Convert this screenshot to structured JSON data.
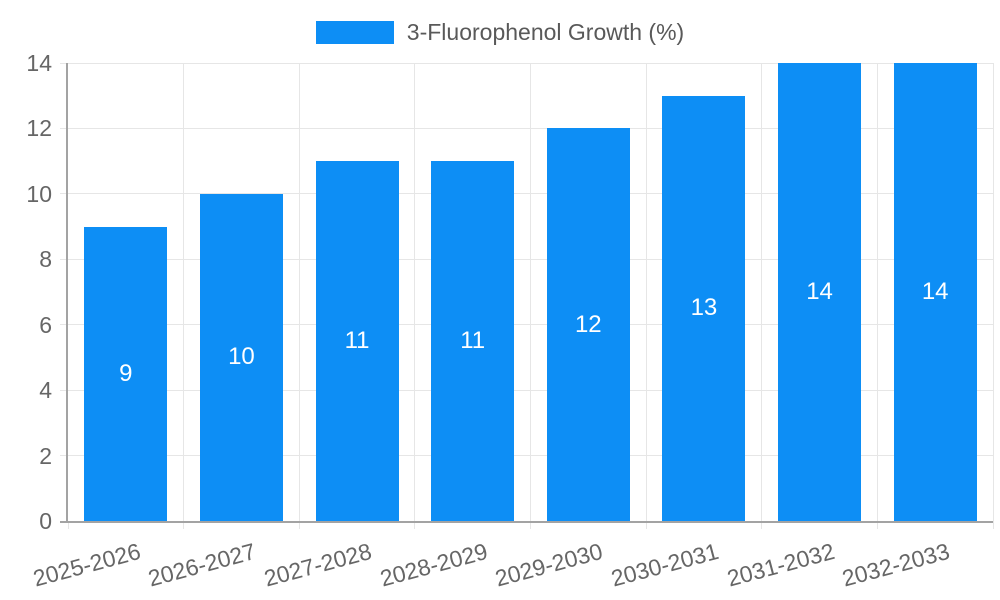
{
  "chart_data": {
    "type": "bar",
    "title": "3-Fluorophenol Growth (%)",
    "categories": [
      "2025-2026",
      "2026-2027",
      "2027-2028",
      "2028-2029",
      "2029-2030",
      "2030-2031",
      "2031-2032",
      "2032-2033"
    ],
    "series": [
      {
        "name": "3-Fluorophenol Growth (%)",
        "values": [
          9,
          10,
          11,
          11,
          12,
          13,
          14,
          14
        ]
      }
    ],
    "xlabel": "",
    "ylabel": "",
    "ylim": [
      0,
      14
    ],
    "yticks": [
      0,
      2,
      4,
      6,
      8,
      10,
      12,
      14
    ],
    "grid": true,
    "legend_position": "top",
    "x_tick_rotation_deg": -15,
    "bar_value_labels_shown": true,
    "colors": {
      "bar": "#0d8ef5",
      "grid": "#e6e6e6",
      "axis": "#a3a3a3",
      "tick_label": "#666666",
      "legend_label": "#595959",
      "bar_value_label": "#ffffff",
      "background": "#ffffff"
    }
  }
}
